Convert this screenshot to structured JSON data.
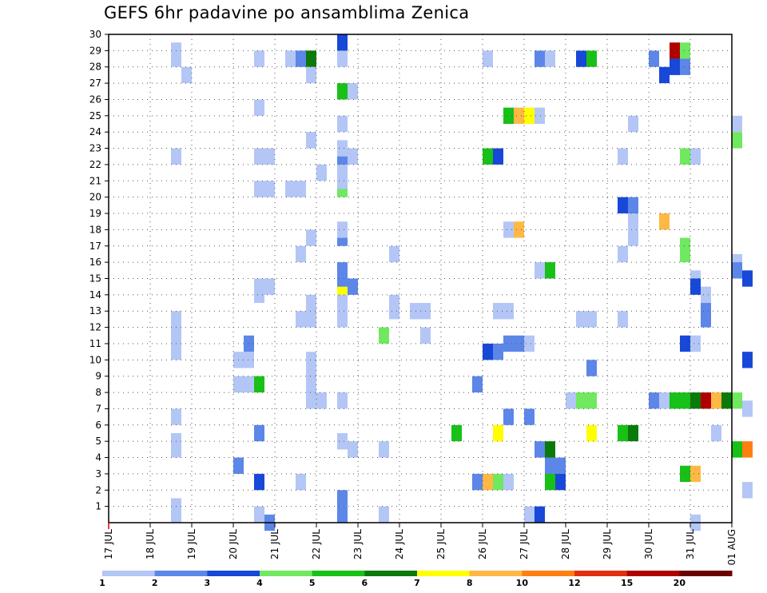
{
  "title": "GEFS 6hr padavine po ansamblima Zenica",
  "chart_data": {
    "type": "heatmap",
    "title": "GEFS 6hr padavine po ansamblima Zenica",
    "x_start": "17 JUL 00Z",
    "x_step_hours": 6,
    "y_range": [
      0,
      30
    ],
    "x_ticks": [
      "17 JUL",
      "18 JUL",
      "19 JUL",
      "20 JUL",
      "21 JUL",
      "22 JUL",
      "23 JUL",
      "24 JUL",
      "25 JUL",
      "26 JUL",
      "27 JUL",
      "28 JUL",
      "29 JUL",
      "30 JUL",
      "31 JUL",
      "01 AUG"
    ],
    "y_ticks": [
      1,
      2,
      3,
      4,
      5,
      6,
      7,
      8,
      9,
      10,
      11,
      12,
      13,
      14,
      15,
      16,
      17,
      18,
      19,
      20,
      21,
      22,
      23,
      24,
      25,
      26,
      27,
      28,
      29,
      30
    ],
    "grid": "dotted",
    "colorbar": {
      "labels": [
        "1",
        "2",
        "3",
        "4",
        "5",
        "6",
        "7",
        "8",
        "10",
        "12",
        "15",
        "20"
      ],
      "colors": [
        "#b3c6f6",
        "#5c86e8",
        "#1848d8",
        "#70e860",
        "#18c018",
        "#0a7a0a",
        "#ffff00",
        "#ffb844",
        "#ff7f10",
        "#e03010",
        "#b00000",
        "#6a0000"
      ]
    },
    "cells": [
      [
        1.5,
        0.5,
        0
      ],
      [
        1.5,
        1,
        0
      ],
      [
        1.5,
        4.5,
        0
      ],
      [
        1.5,
        5,
        0
      ],
      [
        1.5,
        6.5,
        0
      ],
      [
        1.5,
        10.5,
        0
      ],
      [
        1.5,
        11,
        0
      ],
      [
        1.5,
        11.5,
        0
      ],
      [
        1.5,
        12,
        0
      ],
      [
        1.5,
        12.5,
        0
      ],
      [
        1.5,
        22.5,
        0
      ],
      [
        1.5,
        28.5,
        0
      ],
      [
        1.5,
        29,
        0
      ],
      [
        1.75,
        27.5,
        0
      ],
      [
        3,
        10,
        0
      ],
      [
        3,
        8.5,
        0
      ],
      [
        3.25,
        10,
        0
      ],
      [
        3.25,
        8.5,
        0
      ],
      [
        3.25,
        11,
        1
      ],
      [
        3,
        3.5,
        1
      ],
      [
        3.5,
        0.5,
        0
      ],
      [
        3.5,
        14,
        0
      ],
      [
        3.5,
        14.5,
        0
      ],
      [
        3.5,
        20.5,
        0
      ],
      [
        3.5,
        22.5,
        0
      ],
      [
        3.5,
        25.5,
        0
      ],
      [
        3.5,
        5.5,
        1
      ],
      [
        3.5,
        2.5,
        2
      ],
      [
        3.5,
        8.5,
        4
      ],
      [
        3.5,
        28.5,
        0
      ],
      [
        3.75,
        20.5,
        0
      ],
      [
        3.75,
        22.5,
        0
      ],
      [
        3.75,
        14.5,
        0
      ],
      [
        3.75,
        0,
        1
      ],
      [
        4.5,
        2.5,
        0
      ],
      [
        4.5,
        12.5,
        0
      ],
      [
        4.5,
        16.5,
        0
      ],
      [
        4.5,
        20.5,
        0
      ],
      [
        4.5,
        28.5,
        1
      ],
      [
        4.75,
        28.5,
        4
      ],
      [
        4.25,
        28.5,
        0
      ],
      [
        4.25,
        20.5,
        0
      ],
      [
        4.75,
        28.5,
        5
      ],
      [
        4.75,
        7.5,
        0
      ],
      [
        4.75,
        8,
        0
      ],
      [
        4.75,
        8.5,
        0
      ],
      [
        4.75,
        9,
        0
      ],
      [
        4.75,
        9.5,
        0
      ],
      [
        4.75,
        10,
        0
      ],
      [
        4.75,
        12.5,
        0
      ],
      [
        4.75,
        13.5,
        0
      ],
      [
        4.75,
        17.5,
        0
      ],
      [
        4.75,
        23.5,
        0
      ],
      [
        4.75,
        27.5,
        0
      ],
      [
        5,
        7.5,
        0
      ],
      [
        5,
        21.5,
        0
      ],
      [
        5.5,
        0.5,
        1
      ],
      [
        5.5,
        1.5,
        1
      ],
      [
        5.5,
        5,
        0
      ],
      [
        5.5,
        7.5,
        0
      ],
      [
        5.5,
        12.5,
        0
      ],
      [
        5.5,
        13.5,
        0
      ],
      [
        5.5,
        14,
        0
      ],
      [
        5.5,
        14.5,
        6
      ],
      [
        5.5,
        15,
        1
      ],
      [
        5.5,
        15.5,
        1
      ],
      [
        5.5,
        17.5,
        1
      ],
      [
        5.5,
        18,
        0
      ],
      [
        5.5,
        20.5,
        3
      ],
      [
        5.5,
        21,
        0
      ],
      [
        5.5,
        21.5,
        0
      ],
      [
        5.5,
        22.5,
        1
      ],
      [
        5.5,
        23,
        0
      ],
      [
        5.5,
        24.5,
        0
      ],
      [
        5.5,
        26.5,
        4
      ],
      [
        5.5,
        28.5,
        0
      ],
      [
        5.5,
        29.5,
        2
      ],
      [
        5.75,
        4.5,
        0
      ],
      [
        5.75,
        14.5,
        1
      ],
      [
        5.75,
        22.5,
        0
      ],
      [
        5.75,
        26.5,
        0
      ],
      [
        6.5,
        0.5,
        0
      ],
      [
        6.5,
        4.5,
        0
      ],
      [
        6.5,
        11.5,
        3
      ],
      [
        6.75,
        13,
        0
      ],
      [
        6.75,
        13.5,
        0
      ],
      [
        6.75,
        16.5,
        0
      ],
      [
        7.25,
        13,
        0
      ],
      [
        7.5,
        13,
        0
      ],
      [
        7.5,
        11.5,
        0
      ],
      [
        8.25,
        5.5,
        4
      ],
      [
        8.75,
        2.5,
        1
      ],
      [
        8.75,
        8.5,
        1
      ],
      [
        9,
        2.5,
        7
      ],
      [
        9,
        10.5,
        0
      ],
      [
        9.25,
        2.5,
        3
      ],
      [
        9.25,
        5.5,
        6
      ],
      [
        9.25,
        10.5,
        1
      ],
      [
        9.25,
        13,
        0
      ],
      [
        9.5,
        6.5,
        1
      ],
      [
        9.5,
        2.5,
        0
      ],
      [
        9.5,
        13,
        0
      ],
      [
        9.5,
        11,
        1
      ],
      [
        9.75,
        11,
        1
      ],
      [
        9,
        10.5,
        2
      ],
      [
        9,
        22.5,
        4
      ],
      [
        9.25,
        22.5,
        2
      ],
      [
        9,
        28.5,
        0
      ],
      [
        9.5,
        18,
        0
      ],
      [
        9.75,
        18,
        7
      ],
      [
        9.5,
        25,
        4
      ],
      [
        9.75,
        25,
        7
      ],
      [
        10,
        25,
        6
      ],
      [
        10.25,
        25,
        0
      ],
      [
        10,
        0.5,
        0
      ],
      [
        10,
        11,
        0
      ],
      [
        10,
        6.5,
        1
      ],
      [
        10.25,
        15.5,
        0
      ],
      [
        10.5,
        15.5,
        4
      ],
      [
        10.25,
        4.5,
        1
      ],
      [
        10.5,
        4.5,
        5
      ],
      [
        10.5,
        3.5,
        1
      ],
      [
        10.75,
        3.5,
        1
      ],
      [
        10.5,
        2.5,
        4
      ],
      [
        10.75,
        2.5,
        2
      ],
      [
        10.25,
        0.5,
        2
      ],
      [
        10.25,
        28.5,
        1
      ],
      [
        10.5,
        28.5,
        0
      ],
      [
        11,
        7.5,
        0
      ],
      [
        11.25,
        7.5,
        3
      ],
      [
        11.5,
        7.5,
        3
      ],
      [
        11.25,
        12.5,
        0
      ],
      [
        11.5,
        12.5,
        0
      ],
      [
        11.5,
        5.5,
        6
      ],
      [
        11.5,
        9.5,
        1
      ],
      [
        11.25,
        28.5,
        2
      ],
      [
        11.5,
        28.5,
        4
      ],
      [
        12.25,
        5.5,
        4
      ],
      [
        12.5,
        5.5,
        5
      ],
      [
        12.25,
        12.5,
        0
      ],
      [
        12.25,
        16.5,
        0
      ],
      [
        12.5,
        18.5,
        0
      ],
      [
        12.25,
        19.5,
        2
      ],
      [
        12.5,
        19.5,
        1
      ],
      [
        12.5,
        17.5,
        0
      ],
      [
        12.25,
        22.5,
        0
      ],
      [
        12.5,
        24.5,
        0
      ],
      [
        13,
        7.5,
        1
      ],
      [
        13.25,
        7.5,
        0
      ],
      [
        13,
        28.5,
        1
      ],
      [
        13.5,
        28.5,
        0
      ],
      [
        13.5,
        28,
        2
      ],
      [
        13.25,
        18.5,
        7
      ],
      [
        13.25,
        27.5,
        2
      ],
      [
        13.5,
        7.5,
        4
      ],
      [
        13.75,
        7.5,
        4
      ],
      [
        14,
        7.5,
        5
      ],
      [
        14.25,
        7.5,
        10
      ],
      [
        14.5,
        7.5,
        7
      ],
      [
        14.75,
        7.5,
        5
      ],
      [
        15,
        7.5,
        3
      ],
      [
        13.5,
        29,
        10
      ],
      [
        13.75,
        29,
        3
      ],
      [
        13.75,
        28,
        1
      ],
      [
        13.75,
        17,
        3
      ],
      [
        13.75,
        16.5,
        3
      ],
      [
        13.75,
        22.5,
        3
      ],
      [
        14,
        22.5,
        0
      ],
      [
        13.75,
        11,
        2
      ],
      [
        14,
        11,
        0
      ],
      [
        13.75,
        3,
        4
      ],
      [
        14,
        3,
        7
      ],
      [
        14,
        15,
        0
      ],
      [
        14,
        14.5,
        2
      ],
      [
        14.25,
        14,
        0
      ],
      [
        14.25,
        13,
        1
      ],
      [
        14.25,
        12.5,
        1
      ],
      [
        14,
        0,
        0
      ],
      [
        14.5,
        5.5,
        0
      ],
      [
        15,
        4.5,
        4
      ],
      [
        15.25,
        4.5,
        8
      ],
      [
        15,
        24.5,
        0
      ],
      [
        15,
        23.5,
        3
      ],
      [
        15,
        16,
        0
      ],
      [
        15,
        15.5,
        1
      ],
      [
        15.25,
        15,
        2
      ],
      [
        15.25,
        10,
        2
      ],
      [
        15.25,
        7,
        0
      ],
      [
        15.25,
        2,
        0
      ]
    ]
  }
}
